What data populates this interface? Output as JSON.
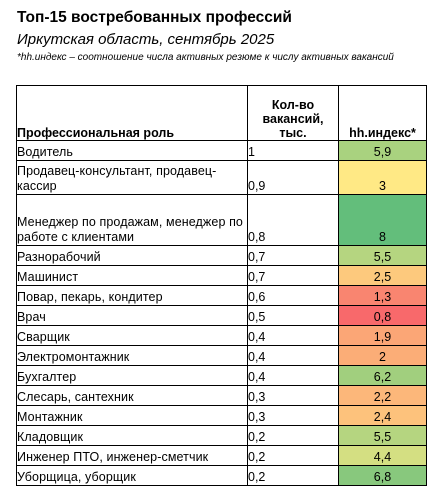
{
  "header": {
    "title": "Топ-15 востребованных профессий",
    "subtitle": "Иркутская область, сентябрь 2025",
    "note": "*hh.индекс – соотношение числа активных резюме к числу активных вакансий"
  },
  "table": {
    "columns": {
      "role": "Профессиональная роль",
      "vacancies": "Кол-во вакансий, тыс.",
      "index": "hh.индекс*"
    },
    "rows": [
      {
        "role": "Водитель",
        "vacancies": "1",
        "index": "5,9",
        "color": "#a9d27f"
      },
      {
        "role": "Продавец-консультант, продавец-кассир",
        "vacancies": "0,9",
        "index": "3",
        "color": "#ffe985"
      },
      {
        "role": "Менеджер по продажам, менеджер по работе с клиентами",
        "vacancies": "0,8",
        "index": "8",
        "color": "#63be7b"
      },
      {
        "role": "Разнорабочий",
        "vacancies": "0,7",
        "index": "5,5",
        "color": "#b5d580"
      },
      {
        "role": "Машинист",
        "vacancies": "0,7",
        "index": "2,5",
        "color": "#fdc97d"
      },
      {
        "role": "Повар, пекарь, кондитер",
        "vacancies": "0,6",
        "index": "1,3",
        "color": "#f98570"
      },
      {
        "role": "Врач",
        "vacancies": "0,5",
        "index": "0,8",
        "color": "#f8696b"
      },
      {
        "role": "Сварщик",
        "vacancies": "0,4",
        "index": "1,9",
        "color": "#fba676"
      },
      {
        "role": "Электромонтажник",
        "vacancies": "0,4",
        "index": "2",
        "color": "#fbad77"
      },
      {
        "role": "Бухгалтер",
        "vacancies": "0,4",
        "index": "6,2",
        "color": "#a1cf7e"
      },
      {
        "role": "Слесарь, сантехник",
        "vacancies": "0,3",
        "index": "2,2",
        "color": "#fcb77a"
      },
      {
        "role": "Монтажник",
        "vacancies": "0,3",
        "index": "2,4",
        "color": "#fdc27c"
      },
      {
        "role": "Кладовщик",
        "vacancies": "0,2",
        "index": "5,5",
        "color": "#b5d580"
      },
      {
        "role": "Инженер ПТО, инженер-сметчик",
        "vacancies": "0,2",
        "index": "4,4",
        "color": "#d4df82"
      },
      {
        "role": "Уборщица, уборщик",
        "vacancies": "0,2",
        "index": "6,8",
        "color": "#88c87d"
      }
    ]
  }
}
